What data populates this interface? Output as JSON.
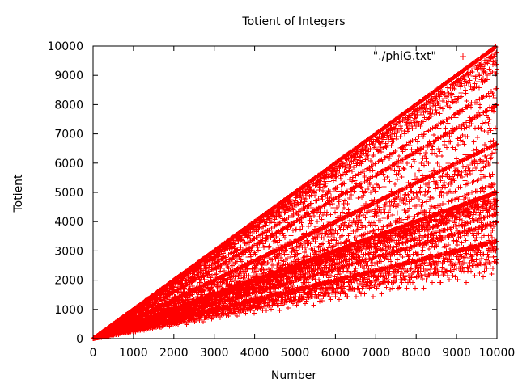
{
  "chart_data": {
    "type": "scatter",
    "title": "Totient of Integers",
    "xlabel": "Number",
    "ylabel": "Totient",
    "xlim": [
      0,
      10000
    ],
    "ylim": [
      0,
      10000
    ],
    "xticks": [
      0,
      1000,
      2000,
      3000,
      4000,
      5000,
      6000,
      7000,
      8000,
      9000,
      10000
    ],
    "yticks": [
      0,
      1000,
      2000,
      3000,
      4000,
      5000,
      6000,
      7000,
      8000,
      9000,
      10000
    ],
    "grid": false,
    "legend_position": "top-right",
    "marker": "+",
    "series": [
      {
        "name": "\"./phiG.txt\"",
        "color": "#ff0000",
        "function": "euler_totient",
        "x_range": [
          1,
          10000
        ]
      }
    ]
  }
}
